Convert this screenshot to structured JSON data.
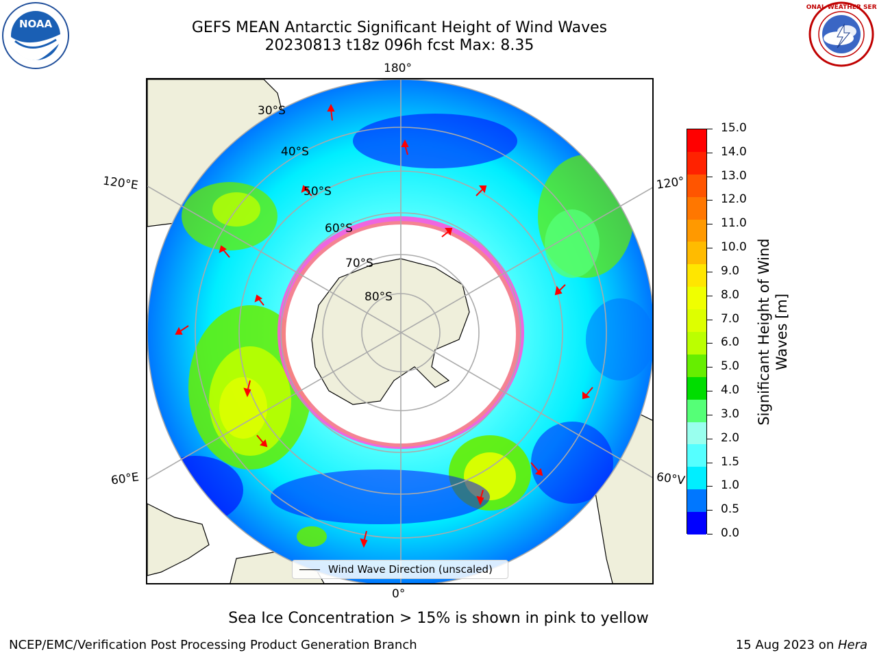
{
  "header": {
    "title_line1": "GEFS MEAN Antarctic Significant Height of Wind Waves",
    "title_line2": "20230813 t18z 096h fcst   Max: 8.35"
  },
  "logos": {
    "left_logo_text": "NOAA",
    "right_logo_text": "NATIONAL WEATHER SERVICE"
  },
  "map": {
    "longitude_labels": {
      "top": "180°",
      "bottom": "0°",
      "upper_left": "120°E",
      "upper_right": "120°",
      "lower_left": "60°E",
      "lower_right": "60°V"
    },
    "latitude_labels": [
      "30°S",
      "40°S",
      "50°S",
      "60°S",
      "70°S",
      "80°S"
    ],
    "legend_entry": "Wind Wave Direction (unscaled)",
    "colors": {
      "land": "#efefdb",
      "ice_pink": "#ff55dd",
      "arrow": "#ff0000"
    }
  },
  "colorbar": {
    "label_line1": "Significant Height of Wind",
    "label_line2": "Waves [m]",
    "ticks": [
      "15.0",
      "14.0",
      "13.0",
      "12.0",
      "11.0",
      "10.0",
      "9.0",
      "8.0",
      "7.0",
      "6.0",
      "5.0",
      "4.0",
      "3.0",
      "2.0",
      "1.5",
      "1.0",
      "0.5",
      "0.0"
    ],
    "colors_top_to_bottom": [
      "#ff0000",
      "#ff2200",
      "#ff5500",
      "#ff7700",
      "#ff9900",
      "#ffbb00",
      "#ffe600",
      "#f0ff00",
      "#ddff00",
      "#bbff00",
      "#66ee00",
      "#00dd00",
      "#55ff77",
      "#99ffee",
      "#55ffff",
      "#00eeff",
      "#0077ff",
      "#0000ff"
    ]
  },
  "footer": {
    "sea_ice_note": "Sea Ice Concentration > 15% is shown in pink to yellow",
    "credit": "NCEP/EMC/Verification Post Processing Product Generation Branch",
    "date_prefix": "15 Aug 2023 on ",
    "machine": "Hera"
  }
}
